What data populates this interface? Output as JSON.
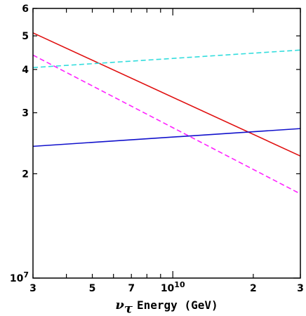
{
  "chart_data": {
    "type": "line",
    "title": "",
    "xlabel": {
      "symbol": "ν",
      "subscript": "τ",
      "text": "Energy (GeV)"
    },
    "ylabel": "",
    "x_scale": "log",
    "y_scale": "log",
    "xlim": [
      3000000000.0,
      30000000000.0
    ],
    "ylim": [
      10000000.0,
      60000000.0
    ],
    "x_ticks": [
      {
        "value": 3000000000.0,
        "label": "3"
      },
      {
        "value": 5000000000.0,
        "label": "5"
      },
      {
        "value": 7000000000.0,
        "label": "7"
      },
      {
        "value": 10000000000.0,
        "label": "10",
        "exponent": "10"
      },
      {
        "value": 20000000000.0,
        "label": "2"
      },
      {
        "value": 30000000000.0,
        "label": "3"
      }
    ],
    "y_ticks": [
      {
        "value": 10000000.0,
        "label": "10",
        "exponent": "7"
      },
      {
        "value": 20000000.0,
        "label": "2"
      },
      {
        "value": 30000000.0,
        "label": "3"
      },
      {
        "value": 40000000.0,
        "label": "4"
      },
      {
        "value": 50000000.0,
        "label": "5"
      },
      {
        "value": 60000000.0,
        "label": "6"
      }
    ],
    "grid": false,
    "legend": "none",
    "series": [
      {
        "color": "#e01010",
        "dash": "solid",
        "x": [
          3000000000.0,
          30000000000.0
        ],
        "y": [
          51000000.0,
          22500000.0
        ]
      },
      {
        "color": "#ff22ff",
        "dash": "dashed",
        "x": [
          3000000000.0,
          30000000000.0
        ],
        "y": [
          44000000.0,
          17500000.0
        ]
      },
      {
        "color": "#33dddd",
        "dash": "dashed",
        "x": [
          3000000000.0,
          30000000000.0
        ],
        "y": [
          40500000.0,
          45500000.0
        ]
      },
      {
        "color": "#1111cc",
        "dash": "solid",
        "x": [
          3000000000.0,
          30000000000.0
        ],
        "y": [
          24000000.0,
          27000000.0
        ]
      }
    ]
  }
}
